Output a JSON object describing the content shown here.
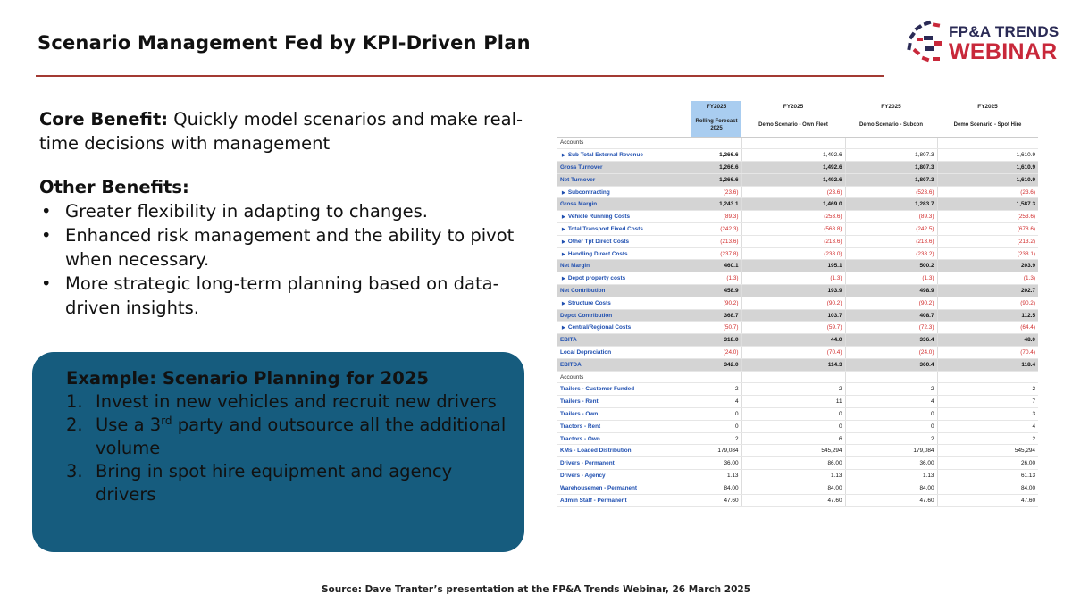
{
  "slide": {
    "title": "Scenario Management Fed by KPI-Driven Plan",
    "source": "Source: Dave Tranter’s presentation at the FP&A Trends Webinar, 26 March 2025"
  },
  "logo": {
    "line1": "FP&A TRENDS",
    "line2": "WEBINAR"
  },
  "left": {
    "core_label": "Core Benefit:",
    "core_text": " Quickly model scenarios and make real-time decisions with management",
    "other_heading": "Other Benefits:",
    "benefits": [
      "Greater flexibility in adapting to changes.",
      "Enhanced risk management and the ability to pivot when necessary.",
      "More strategic long-term planning based on data-driven insights."
    ]
  },
  "example": {
    "heading": "Example: Scenario Planning for 2025",
    "items": [
      {
        "num": "1.",
        "pre": "Invest in new vehicles and recruit new drivers",
        "sup": "",
        "post": ""
      },
      {
        "num": "2.",
        "pre": "Use a 3",
        "sup": "rd",
        "post": " party and outsource all the additional volume"
      },
      {
        "num": "3.",
        "pre": "Bring in spot hire equipment and agency drivers",
        "sup": "",
        "post": ""
      }
    ]
  },
  "table": {
    "years": [
      "FY2025",
      "FY2025",
      "FY2025",
      "FY2025"
    ],
    "scenarios": [
      "Rolling Forecast 2025",
      "Demo Scenario - Own Fleet",
      "Demo Scenario - Subcon",
      "Demo Scenario - Spot Hire"
    ],
    "rows": [
      {
        "label": "Accounts",
        "kind": "acc",
        "values": [
          "",
          "",
          "",
          ""
        ]
      },
      {
        "label": "Sub Total External Revenue",
        "kind": "exp",
        "values": [
          "1,266.6",
          "1,492.6",
          "1,807.3",
          "1,610.9"
        ]
      },
      {
        "label": "Gross Turnover",
        "kind": "shade",
        "values": [
          "1,266.6",
          "1,492.6",
          "1,807.3",
          "1,610.9"
        ]
      },
      {
        "label": "Net Turnover",
        "kind": "shade",
        "values": [
          "1,266.6",
          "1,492.6",
          "1,807.3",
          "1,610.9"
        ]
      },
      {
        "label": "Subcontracting",
        "kind": "exp",
        "neg": true,
        "values": [
          "(23.6)",
          "(23.6)",
          "(523.6)",
          "(23.6)"
        ]
      },
      {
        "label": "Gross Margin",
        "kind": "shade",
        "values": [
          "1,243.1",
          "1,469.0",
          "1,283.7",
          "1,587.3"
        ]
      },
      {
        "label": "Vehicle Running Costs",
        "kind": "exp",
        "neg": true,
        "values": [
          "(89.3)",
          "(253.6)",
          "(89.3)",
          "(253.6)"
        ]
      },
      {
        "label": "Total Transport Fixed Costs",
        "kind": "exp",
        "neg": true,
        "values": [
          "(242.3)",
          "(568.8)",
          "(242.5)",
          "(678.6)"
        ]
      },
      {
        "label": "Other Tpt Direct Costs",
        "kind": "exp",
        "neg": true,
        "values": [
          "(213.6)",
          "(213.6)",
          "(213.6)",
          "(213.2)"
        ]
      },
      {
        "label": "Handling Direct Costs",
        "kind": "exp",
        "neg": true,
        "values": [
          "(237.8)",
          "(238.0)",
          "(238.2)",
          "(238.1)"
        ]
      },
      {
        "label": "Net Margin",
        "kind": "shade",
        "values": [
          "460.1",
          "195.1",
          "500.2",
          "203.9"
        ]
      },
      {
        "label": "Depot property costs",
        "kind": "exp",
        "neg": true,
        "values": [
          "(1.3)",
          "(1.3)",
          "(1.3)",
          "(1.3)"
        ]
      },
      {
        "label": "Net Contribution",
        "kind": "shade",
        "values": [
          "458.9",
          "193.9",
          "498.9",
          "202.7"
        ]
      },
      {
        "label": "Structure Costs",
        "kind": "exp",
        "neg": true,
        "values": [
          "(90.2)",
          "(90.2)",
          "(90.2)",
          "(90.2)"
        ]
      },
      {
        "label": "Depot Contribution",
        "kind": "shade",
        "values": [
          "368.7",
          "103.7",
          "408.7",
          "112.5"
        ]
      },
      {
        "label": "Central/Regional Costs",
        "kind": "exp",
        "neg": true,
        "values": [
          "(50.7)",
          "(59.7)",
          "(72.3)",
          "(64.4)"
        ]
      },
      {
        "label": "EBITA",
        "kind": "shade",
        "values": [
          "318.0",
          "44.0",
          "336.4",
          "48.0"
        ]
      },
      {
        "label": "Local Depreciation",
        "kind": "plain",
        "neg": true,
        "values": [
          "(24.0)",
          "(70.4)",
          "(24.0)",
          "(70.4)"
        ]
      },
      {
        "label": "EBITDA",
        "kind": "shade",
        "values": [
          "342.0",
          "114.3",
          "360.4",
          "118.4"
        ]
      },
      {
        "label": "Accounts",
        "kind": "acc",
        "values": [
          "",
          "",
          "",
          ""
        ]
      },
      {
        "label": "Trailers - Customer Funded",
        "kind": "plain",
        "values": [
          "2",
          "2",
          "2",
          "2"
        ]
      },
      {
        "label": "Trailers - Rent",
        "kind": "plain",
        "values": [
          "4",
          "11",
          "4",
          "7"
        ]
      },
      {
        "label": "Trailers - Own",
        "kind": "plain",
        "values": [
          "0",
          "0",
          "0",
          "3"
        ]
      },
      {
        "label": "Tractors - Rent",
        "kind": "plain",
        "values": [
          "0",
          "0",
          "0",
          "4"
        ]
      },
      {
        "label": "Tractors - Own",
        "kind": "plain",
        "values": [
          "2",
          "6",
          "2",
          "2"
        ]
      },
      {
        "label": "KMs - Loaded Distribution",
        "kind": "plain",
        "values": [
          "179,084",
          "545,294",
          "179,084",
          "545,294"
        ]
      },
      {
        "label": "Drivers - Permanent",
        "kind": "plain",
        "values": [
          "36.00",
          "86.00",
          "36.00",
          "26.00"
        ]
      },
      {
        "label": "Drivers - Agency",
        "kind": "plain",
        "values": [
          "1.13",
          "1.13",
          "1.13",
          "61.13"
        ]
      },
      {
        "label": "Warehousemen - Permanent",
        "kind": "plain",
        "values": [
          "84.00",
          "84.00",
          "84.00",
          "84.00"
        ]
      },
      {
        "label": "Admin Staff - Permanent",
        "kind": "plain",
        "values": [
          "47.60",
          "47.60",
          "47.60",
          "47.60"
        ]
      }
    ]
  }
}
